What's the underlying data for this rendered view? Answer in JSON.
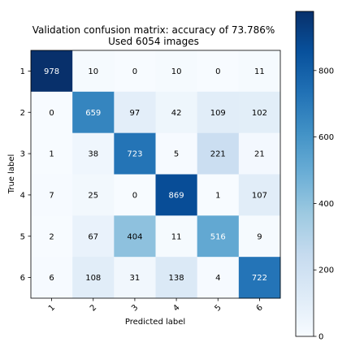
{
  "chart_data": {
    "type": "heatmap",
    "title": "Validation confusion matrix: accuracy of 73.786%",
    "subtitle": "Used 6054 images",
    "xlabel": "Predicted label",
    "ylabel": "True label",
    "x_categories": [
      "1",
      "2",
      "3",
      "4",
      "5",
      "6"
    ],
    "y_categories": [
      "1",
      "2",
      "3",
      "4",
      "5",
      "6"
    ],
    "values": [
      [
        978,
        10,
        0,
        10,
        0,
        11
      ],
      [
        0,
        659,
        97,
        42,
        109,
        102
      ],
      [
        1,
        38,
        723,
        5,
        221,
        21
      ],
      [
        7,
        25,
        0,
        869,
        1,
        107
      ],
      [
        2,
        67,
        404,
        11,
        516,
        9
      ],
      [
        6,
        108,
        31,
        138,
        4,
        722
      ]
    ],
    "colormap": "Blues",
    "colorbar": {
      "range": [
        0,
        978
      ],
      "ticks": [
        0,
        200,
        400,
        600,
        800
      ]
    },
    "grid": false,
    "legend": "colorbar-right"
  }
}
